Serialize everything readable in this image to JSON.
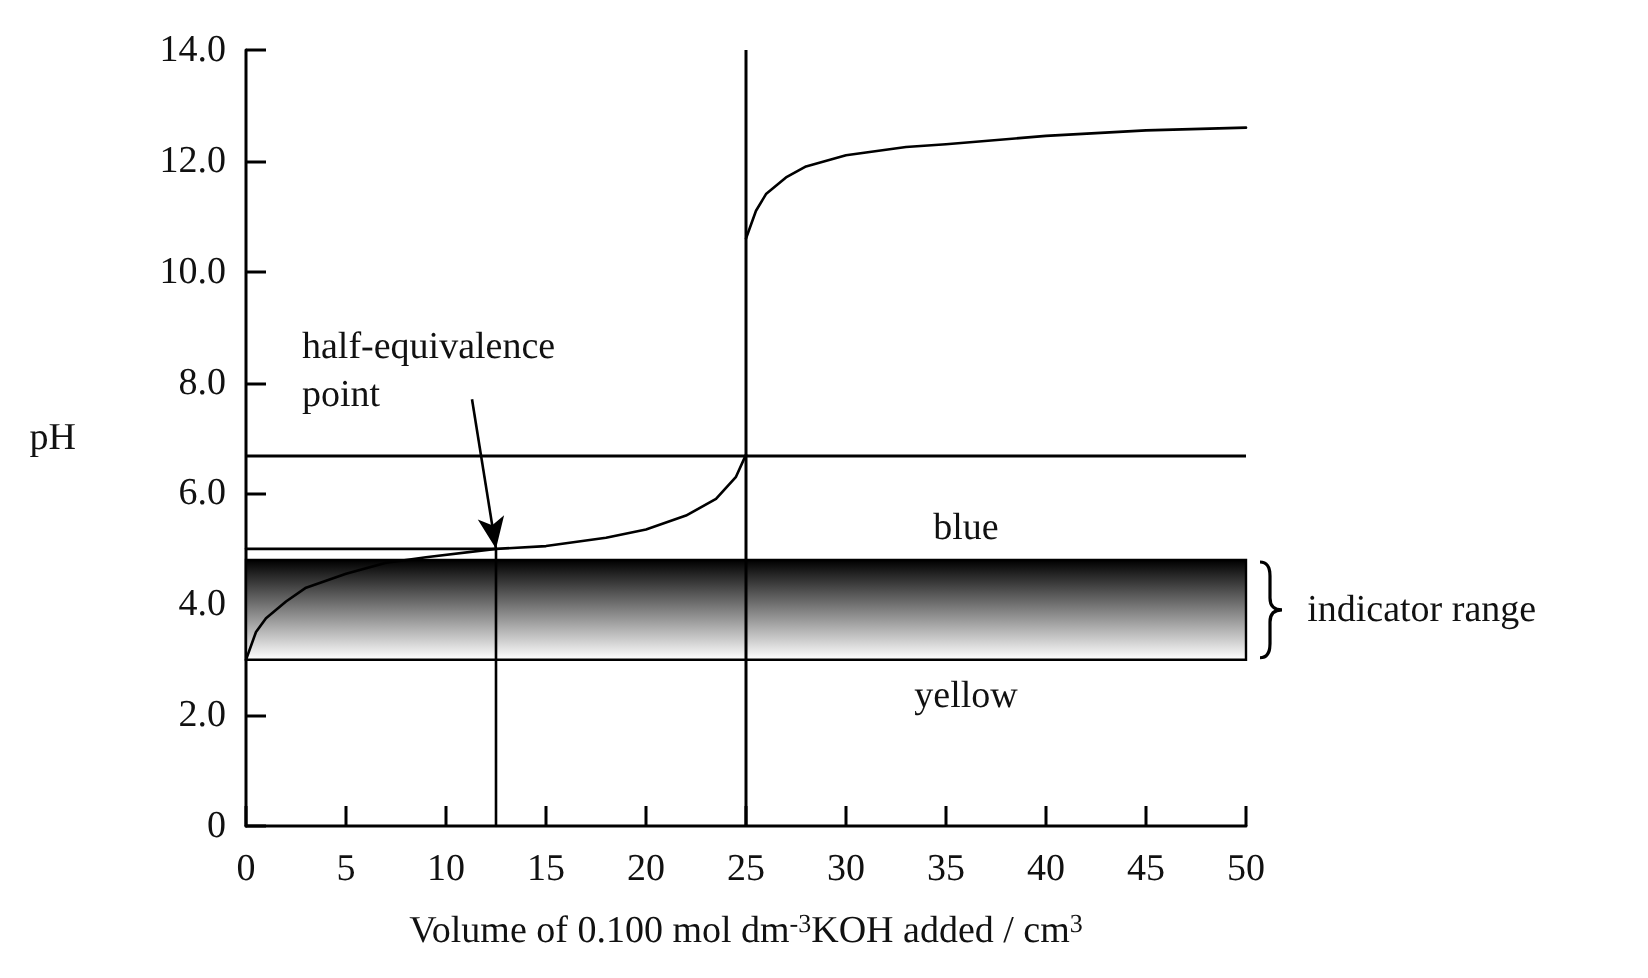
{
  "chart_data": {
    "type": "line",
    "xlabel": "Volume of 0.100 mol dm$^{-3}$KOH added / cm$^{3}$",
    "ylabel": "pH",
    "xlim": [
      0,
      50
    ],
    "xticks": [
      0,
      5,
      10,
      15,
      20,
      25,
      30,
      35,
      40,
      45,
      50
    ],
    "ylim": [
      0,
      14
    ],
    "yticks": [
      0,
      {
        "value": 2,
        "label": "2.0"
      },
      {
        "value": 4,
        "label": "4.0"
      },
      {
        "value": 6,
        "label": "6.0"
      },
      {
        "value": 8,
        "label": "8.0"
      },
      {
        "value": 10,
        "label": "10.0"
      },
      {
        "value": 12,
        "label": "12.0"
      },
      {
        "value": 14,
        "label": "14.0"
      }
    ],
    "series": [
      {
        "color": "#000000",
        "x": [
          0,
          0.5,
          1,
          2,
          3,
          5,
          7,
          9,
          12.5,
          15,
          18,
          20,
          22,
          23.5,
          24.5,
          25
        ],
        "values": [
          3.0,
          3.5,
          3.75,
          4.05,
          4.3,
          4.55,
          4.75,
          4.85,
          5.0,
          5.05,
          5.2,
          5.35,
          5.6,
          5.9,
          6.3,
          6.7
        ]
      },
      {
        "color": "#000000",
        "x": [
          25,
          25.5,
          26,
          27,
          28,
          30,
          33,
          35,
          40,
          45,
          50
        ],
        "values": [
          10.6,
          11.1,
          11.4,
          11.7,
          11.9,
          12.1,
          12.25,
          12.3,
          12.45,
          12.55,
          12.6
        ]
      },
      {
        "color": "#000000",
        "x": [
          0,
          12.5,
          12.5
        ],
        "values": [
          5.0,
          5.0,
          0
        ]
      }
    ],
    "ref_lines": [
      {
        "axis": "x",
        "value": 25,
        "color": "#000000"
      },
      {
        "axis": "y",
        "value": 6.7,
        "color": "#000000"
      }
    ],
    "bands": [
      {
        "axis": "y",
        "from": 3.0,
        "to": 4.8,
        "label": "indicator range",
        "color": "#000000"
      }
    ],
    "annotations": [
      {
        "text": "half-equivalence point",
        "x": 12.5,
        "y": 5.0
      },
      "blue",
      "yellow"
    ],
    "grid": false,
    "marker": "none",
    "line_style": "solid"
  }
}
